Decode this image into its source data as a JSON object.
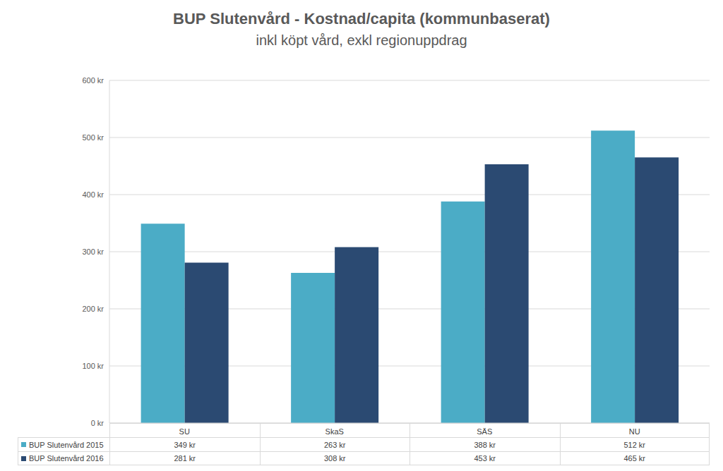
{
  "chart_data": {
    "type": "bar",
    "title": "BUP Slutenvård - Kostnad/capita (kommunbaserat)",
    "subtitle": "inkl köpt vård, exkl regionuppdrag",
    "categories": [
      "SU",
      "SkaS",
      "SÄS",
      "NU"
    ],
    "series": [
      {
        "name": "BUP Slutenvård 2015",
        "color": "#4bacc6",
        "values": [
          349,
          263,
          388,
          512
        ],
        "value_labels": [
          "349 kr",
          "263 kr",
          "388 kr",
          "512 kr"
        ]
      },
      {
        "name": "BUP Slutenvård 2016",
        "color": "#2b4a72",
        "values": [
          281,
          308,
          453,
          465
        ],
        "value_labels": [
          "281 kr",
          "308 kr",
          "453 kr",
          "465 kr"
        ]
      }
    ],
    "ylim": [
      0,
      600
    ],
    "yticks": [
      {
        "value": 0,
        "label": "0 kr"
      },
      {
        "value": 100,
        "label": "100 kr"
      },
      {
        "value": 200,
        "label": "200 kr"
      },
      {
        "value": 300,
        "label": "300 kr"
      },
      {
        "value": 400,
        "label": "400 kr"
      },
      {
        "value": 500,
        "label": "500 kr"
      },
      {
        "value": 600,
        "label": "600 kr"
      }
    ],
    "grid": true
  }
}
